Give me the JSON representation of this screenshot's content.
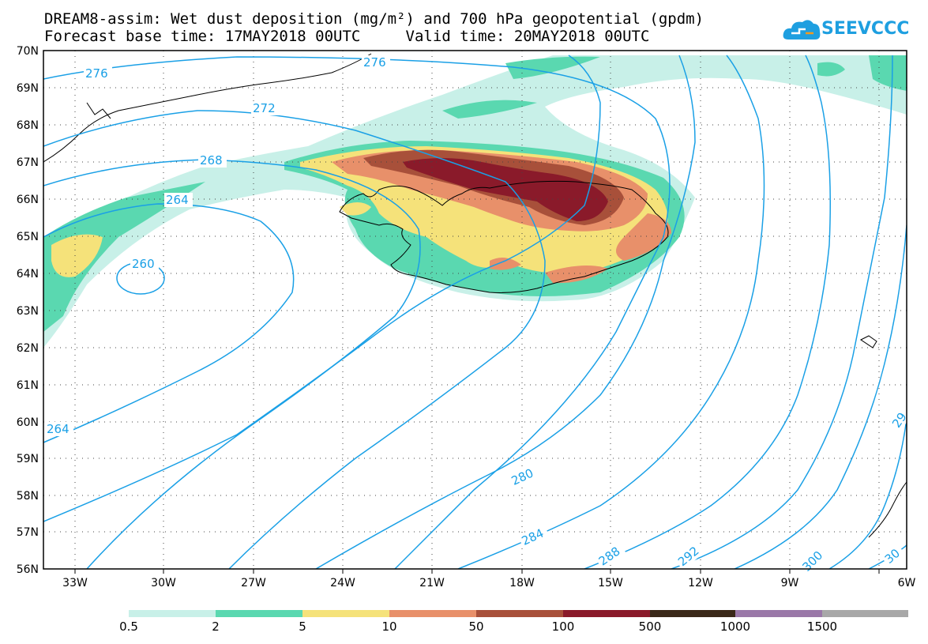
{
  "header": {
    "title_line1": "DREAM8-assim: Wet dust deposition (mg/m²) and 700 hPa geopotential (gpdm)",
    "title_line2": "Forecast base time: 17MAY2018 00UTC     Valid time: 20MAY2018 00UTC",
    "logo_text": "SEEVCCC"
  },
  "map": {
    "lat_labels": [
      "70N",
      "69N",
      "68N",
      "67N",
      "66N",
      "65N",
      "64N",
      "63N",
      "62N",
      "61N",
      "60N",
      "59N",
      "58N",
      "57N",
      "56N"
    ],
    "lon_labels": [
      "33W",
      "30W",
      "27W",
      "24W",
      "21W",
      "18W",
      "15W",
      "12W",
      "9W",
      "6W"
    ],
    "contour_labels": [
      "276",
      "276",
      "272",
      "268",
      "264",
      "260",
      "264",
      "280",
      "284",
      "288",
      "292",
      "300",
      "29",
      "30"
    ],
    "contour_color": "#1aa0e6"
  },
  "colorbar": {
    "labels": [
      "0.5",
      "2",
      "5",
      "10",
      "50",
      "100",
      "500",
      "1000",
      "1500"
    ],
    "colors": [
      "#c8f0e8",
      "#5ad8b0",
      "#f5e27a",
      "#e8906a",
      "#a8503a",
      "#8a1a2a",
      "#3a2818",
      "#9a78a8",
      "#a8a8a8"
    ]
  }
}
